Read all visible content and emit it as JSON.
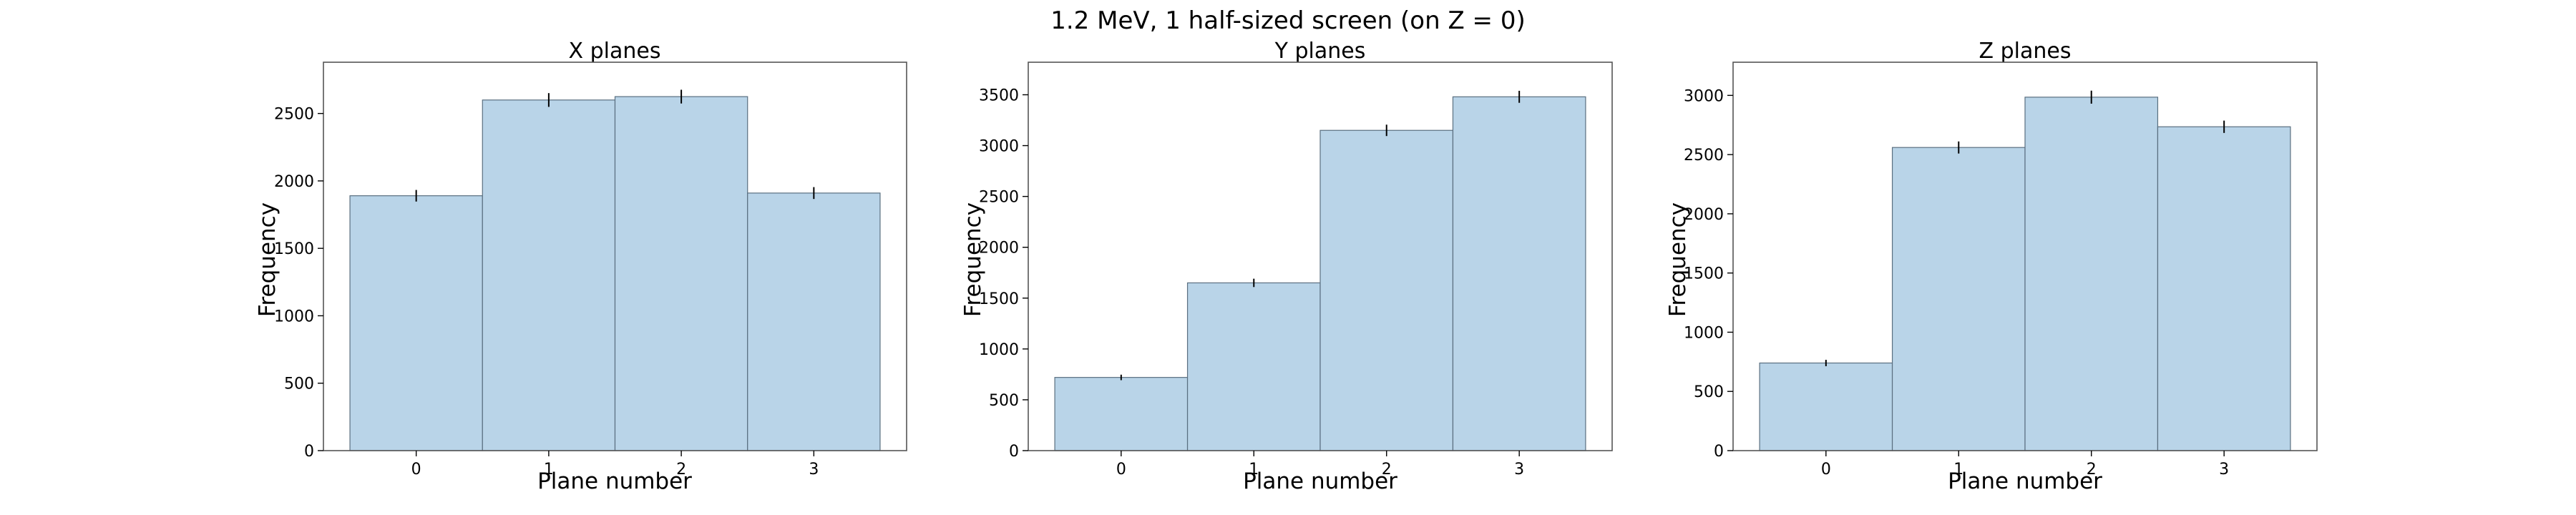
{
  "figure": {
    "suptitle": "1.2 MeV, 1 half-sized screen (on Z = 0)",
    "bar_color": "#b9d4e8",
    "bar_edge_color": "#5a6f80",
    "error_color": "#000000"
  },
  "chart_data": [
    {
      "type": "bar",
      "title": "X planes",
      "xlabel": "Plane number",
      "ylabel": "Frequency",
      "categories": [
        "0",
        "1",
        "2",
        "3"
      ],
      "values": [
        1890,
        2600,
        2625,
        1910
      ],
      "errors": [
        43,
        51,
        51,
        44
      ],
      "ylim": [
        0,
        2880
      ],
      "yticks": [
        0,
        500,
        1000,
        1500,
        2000,
        2500
      ],
      "grid": false,
      "legend": "none"
    },
    {
      "type": "bar",
      "title": "Y planes",
      "xlabel": "Plane number",
      "ylabel": "Frequency",
      "categories": [
        "0",
        "1",
        "2",
        "3"
      ],
      "values": [
        720,
        1650,
        3150,
        3480
      ],
      "errors": [
        27,
        41,
        56,
        59
      ],
      "ylim": [
        0,
        3820
      ],
      "yticks": [
        0,
        500,
        1000,
        1500,
        2000,
        2500,
        3000,
        3500
      ],
      "grid": false,
      "legend": "none"
    },
    {
      "type": "bar",
      "title": "Z planes",
      "xlabel": "Plane number",
      "ylabel": "Frequency",
      "categories": [
        "0",
        "1",
        "2",
        "3"
      ],
      "values": [
        740,
        2560,
        2985,
        2735
      ],
      "errors": [
        27,
        51,
        55,
        52
      ],
      "ylim": [
        0,
        3280
      ],
      "yticks": [
        0,
        500,
        1000,
        1500,
        2000,
        2500,
        3000
      ],
      "grid": false,
      "legend": "none"
    }
  ]
}
